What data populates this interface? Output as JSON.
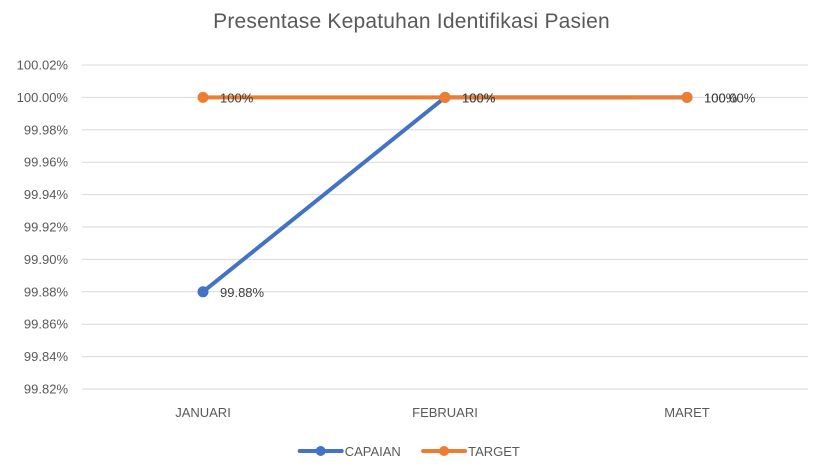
{
  "chart_data": {
    "type": "line",
    "title": "Presentase Kepatuhan Identifikasi Pasien",
    "categories": [
      "JANUARI",
      "FEBRUARI",
      "MARET"
    ],
    "series": [
      {
        "name": "CAPAIAN",
        "color": "#4472C4",
        "values": [
          99.88,
          100.0,
          100.0
        ],
        "labels": [
          "99.88%",
          "100%",
          "100.00%"
        ]
      },
      {
        "name": "TARGET",
        "color": "#ED7D31",
        "values": [
          100.0,
          100.0,
          100.0
        ],
        "labels": [
          "100%",
          "100%",
          "100%"
        ]
      }
    ],
    "ylim": [
      99.82,
      100.02
    ],
    "yticks": [
      "99.82%",
      "99.84%",
      "99.86%",
      "99.88%",
      "99.90%",
      "99.92%",
      "99.94%",
      "99.96%",
      "99.98%",
      "100.00%",
      "100.02%"
    ],
    "grid": true,
    "legend": "bottom"
  }
}
